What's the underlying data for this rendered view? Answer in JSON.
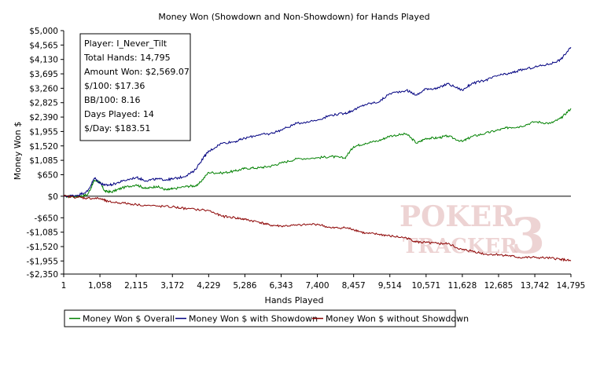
{
  "chart_data": {
    "type": "line",
    "title": "Money Won (Showdown and Non-Showdown) for Hands Played",
    "xlabel": "Hands Played",
    "ylabel": "Money Won $",
    "xlim": [
      1,
      14795
    ],
    "ylim": [
      -2350,
      5000
    ],
    "x_ticks": [
      1,
      1058,
      2115,
      3172,
      4229,
      5286,
      6343,
      7400,
      8457,
      9514,
      10571,
      11628,
      12685,
      13742,
      14795
    ],
    "x_tick_labels": [
      "1",
      "1,058",
      "2,115",
      "3,172",
      "4,229",
      "5,286",
      "6,343",
      "7,400",
      "8,457",
      "9,514",
      "10,571",
      "11,628",
      "12,685",
      "13,742",
      "14,795"
    ],
    "y_ticks": [
      5000,
      4565,
      4130,
      3695,
      3260,
      2825,
      2390,
      1955,
      1520,
      1085,
      650,
      0,
      -650,
      -1085,
      -1520,
      -1955,
      -2350
    ],
    "y_tick_labels": [
      "$5,000",
      "$4,565",
      "$4,130",
      "$3,695",
      "$3,260",
      "$2,825",
      "$2,390",
      "$1,955",
      "$1,520",
      "$1,085",
      "$650",
      "$0",
      "-$650",
      "-$1,085",
      "-$1,520",
      "-$1,955",
      "-$2,350"
    ],
    "legend_position": "bottom-left",
    "grid": false,
    "series": [
      {
        "name": "Money Won $ Overall",
        "color": "#008000",
        "points": [
          [
            1,
            0
          ],
          [
            400,
            -20
          ],
          [
            700,
            50
          ],
          [
            900,
            480
          ],
          [
            1058,
            420
          ],
          [
            1200,
            150
          ],
          [
            1400,
            130
          ],
          [
            1700,
            250
          ],
          [
            2115,
            350
          ],
          [
            2400,
            230
          ],
          [
            2700,
            300
          ],
          [
            3000,
            190
          ],
          [
            3172,
            220
          ],
          [
            3600,
            300
          ],
          [
            3900,
            320
          ],
          [
            4229,
            720
          ],
          [
            4600,
            700
          ],
          [
            5000,
            760
          ],
          [
            5286,
            840
          ],
          [
            5700,
            860
          ],
          [
            6000,
            900
          ],
          [
            6343,
            1000
          ],
          [
            6800,
            1130
          ],
          [
            7400,
            1160
          ],
          [
            7800,
            1200
          ],
          [
            8200,
            1150
          ],
          [
            8457,
            1500
          ],
          [
            8800,
            1600
          ],
          [
            9200,
            1680
          ],
          [
            9514,
            1820
          ],
          [
            10000,
            1880
          ],
          [
            10300,
            1600
          ],
          [
            10571,
            1750
          ],
          [
            10900,
            1760
          ],
          [
            11200,
            1820
          ],
          [
            11628,
            1650
          ],
          [
            11900,
            1800
          ],
          [
            12300,
            1900
          ],
          [
            12685,
            2000
          ],
          [
            13000,
            2080
          ],
          [
            13300,
            2100
          ],
          [
            13742,
            2250
          ],
          [
            14200,
            2200
          ],
          [
            14500,
            2350
          ],
          [
            14795,
            2650
          ]
        ]
      },
      {
        "name": "Money Won $ with Showdown",
        "color": "#000080",
        "points": [
          [
            1,
            0
          ],
          [
            400,
            30
          ],
          [
            700,
            150
          ],
          [
            900,
            550
          ],
          [
            1058,
            400
          ],
          [
            1200,
            330
          ],
          [
            1400,
            350
          ],
          [
            1700,
            450
          ],
          [
            2115,
            570
          ],
          [
            2400,
            470
          ],
          [
            2700,
            520
          ],
          [
            3000,
            500
          ],
          [
            3172,
            520
          ],
          [
            3500,
            590
          ],
          [
            3800,
            750
          ],
          [
            4100,
            1200
          ],
          [
            4229,
            1350
          ],
          [
            4600,
            1600
          ],
          [
            5000,
            1650
          ],
          [
            5286,
            1750
          ],
          [
            5700,
            1860
          ],
          [
            6000,
            1880
          ],
          [
            6343,
            2000
          ],
          [
            6800,
            2200
          ],
          [
            7400,
            2300
          ],
          [
            7800,
            2450
          ],
          [
            8200,
            2500
          ],
          [
            8457,
            2600
          ],
          [
            8800,
            2770
          ],
          [
            9200,
            2850
          ],
          [
            9514,
            3100
          ],
          [
            10000,
            3200
          ],
          [
            10300,
            3050
          ],
          [
            10571,
            3250
          ],
          [
            10900,
            3250
          ],
          [
            11200,
            3400
          ],
          [
            11628,
            3200
          ],
          [
            11900,
            3400
          ],
          [
            12300,
            3500
          ],
          [
            12685,
            3650
          ],
          [
            13000,
            3700
          ],
          [
            13300,
            3800
          ],
          [
            13742,
            3900
          ],
          [
            14200,
            4000
          ],
          [
            14500,
            4130
          ],
          [
            14795,
            4500
          ]
        ]
      },
      {
        "name": "Money Won $ without Showdown",
        "color": "#8b0000",
        "points": [
          [
            1,
            0
          ],
          [
            400,
            -30
          ],
          [
            700,
            -60
          ],
          [
            1058,
            -70
          ],
          [
            1300,
            -170
          ],
          [
            1700,
            -200
          ],
          [
            2115,
            -250
          ],
          [
            2700,
            -300
          ],
          [
            3172,
            -320
          ],
          [
            3600,
            -380
          ],
          [
            4229,
            -430
          ],
          [
            4600,
            -600
          ],
          [
            5000,
            -650
          ],
          [
            5286,
            -700
          ],
          [
            5700,
            -780
          ],
          [
            6000,
            -870
          ],
          [
            6343,
            -900
          ],
          [
            6800,
            -880
          ],
          [
            7400,
            -840
          ],
          [
            7800,
            -960
          ],
          [
            8200,
            -950
          ],
          [
            8457,
            -1000
          ],
          [
            8800,
            -1120
          ],
          [
            9200,
            -1150
          ],
          [
            9514,
            -1200
          ],
          [
            10000,
            -1260
          ],
          [
            10300,
            -1380
          ],
          [
            10571,
            -1400
          ],
          [
            10900,
            -1430
          ],
          [
            11200,
            -1430
          ],
          [
            11628,
            -1620
          ],
          [
            11900,
            -1650
          ],
          [
            12300,
            -1750
          ],
          [
            12685,
            -1760
          ],
          [
            13000,
            -1800
          ],
          [
            13300,
            -1850
          ],
          [
            13742,
            -1850
          ],
          [
            14200,
            -1870
          ],
          [
            14500,
            -1900
          ],
          [
            14795,
            -1955
          ]
        ]
      }
    ]
  },
  "stats_box": {
    "player": "Player: I_Never_Tilt",
    "total_hands": "Total Hands: 14,795",
    "amount_won": "Amount Won: $2,569.07",
    "per_100": "$/100: $17.36",
    "bb_100": "BB/100: 8.16",
    "days_played": "Days Played: 14",
    "per_day": "$/Day: $183.51"
  },
  "watermark": {
    "line1": "POKER",
    "line2": "TRACKER",
    "mark": "3"
  }
}
